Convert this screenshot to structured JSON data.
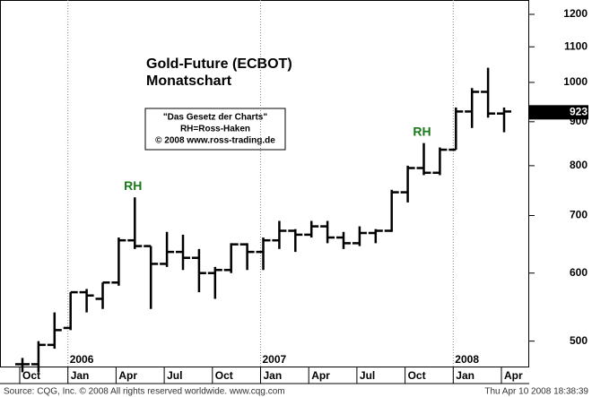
{
  "chart_data": {
    "type": "ohlc",
    "title": "Gold-Future (ECBOT)",
    "subtitle": "Monatschart",
    "info_box": [
      "\"Das Gesetz der Charts\"",
      "RH=Ross-Haken",
      "© 2008 www.ross-trading.de"
    ],
    "annotations": [
      "RH",
      "RH"
    ],
    "categories": [
      "Oct",
      null,
      null,
      "Jan",
      null,
      null,
      "Apr",
      null,
      null,
      "Jul",
      null,
      null,
      "Oct",
      null,
      null,
      "Jan",
      null,
      null,
      "Apr",
      null,
      null,
      "Jul",
      null,
      null,
      "Oct",
      null,
      null,
      "Jan",
      null,
      null,
      "Apr"
    ],
    "year_labels": [
      "2006",
      "2007",
      "2008"
    ],
    "open": [
      470,
      470,
      495,
      518,
      570,
      560,
      585,
      655,
      645,
      615,
      635,
      625,
      600,
      605,
      648,
      635,
      655,
      672,
      665,
      680,
      660,
      650,
      668,
      672,
      745,
      795,
      785,
      835,
      925,
      975,
      920
    ],
    "high": [
      478,
      500,
      540,
      570,
      575,
      585,
      660,
      735,
      645,
      670,
      665,
      640,
      610,
      650,
      650,
      660,
      690,
      675,
      690,
      690,
      670,
      680,
      675,
      750,
      800,
      850,
      840,
      935,
      985,
      1040,
      935
    ],
    "low": [
      460,
      460,
      490,
      515,
      540,
      545,
      580,
      640,
      545,
      610,
      605,
      570,
      560,
      600,
      605,
      605,
      640,
      635,
      660,
      650,
      640,
      645,
      650,
      670,
      725,
      780,
      780,
      835,
      885,
      910,
      875
    ],
    "close": [
      470,
      495,
      515,
      570,
      565,
      585,
      655,
      645,
      615,
      635,
      625,
      600,
      605,
      648,
      635,
      655,
      672,
      665,
      680,
      660,
      650,
      668,
      672,
      745,
      795,
      785,
      835,
      925,
      975,
      920,
      925
    ],
    "color": "#000000",
    "log_scale": true,
    "ylim": [
      466,
      1247
    ],
    "yticks": [
      500,
      600,
      700,
      800,
      900,
      1000,
      1100,
      1200
    ],
    "last_price": 923,
    "source": "Source: CQG, Inc. © 2008 All rights reserved worldwide. www.cqg.com",
    "timestamp": "Thu Apr 10 2008 18:38:39"
  }
}
